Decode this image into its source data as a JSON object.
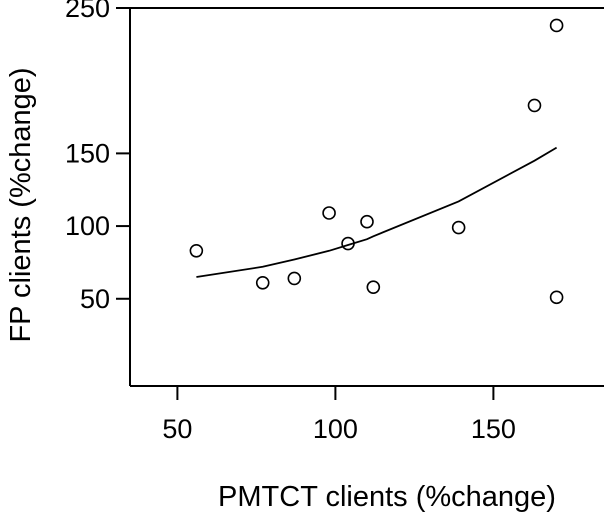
{
  "chart_data": {
    "type": "scatter",
    "xlabel": "PMTCT clients (%change)",
    "ylabel": "FP clients (%change)",
    "x_ticks": [
      50,
      100,
      150
    ],
    "y_ticks": [
      50,
      100,
      150,
      250
    ],
    "xlim": [
      35,
      185
    ],
    "ylim": [
      -10,
      250
    ],
    "points": [
      {
        "x": 56,
        "y": 83
      },
      {
        "x": 77,
        "y": 61
      },
      {
        "x": 87,
        "y": 64
      },
      {
        "x": 98,
        "y": 109
      },
      {
        "x": 104,
        "y": 88
      },
      {
        "x": 110,
        "y": 103
      },
      {
        "x": 112,
        "y": 58
      },
      {
        "x": 139,
        "y": 99
      },
      {
        "x": 163,
        "y": 183
      },
      {
        "x": 170,
        "y": 51
      },
      {
        "x": 170,
        "y": 238
      }
    ],
    "trend_line": [
      {
        "x": 56,
        "y": 65
      },
      {
        "x": 77,
        "y": 72
      },
      {
        "x": 87,
        "y": 77
      },
      {
        "x": 98,
        "y": 83
      },
      {
        "x": 104,
        "y": 87
      },
      {
        "x": 110,
        "y": 91
      },
      {
        "x": 112,
        "y": 93
      },
      {
        "x": 139,
        "y": 117
      },
      {
        "x": 163,
        "y": 145
      },
      {
        "x": 170,
        "y": 154
      }
    ],
    "grid": false
  }
}
